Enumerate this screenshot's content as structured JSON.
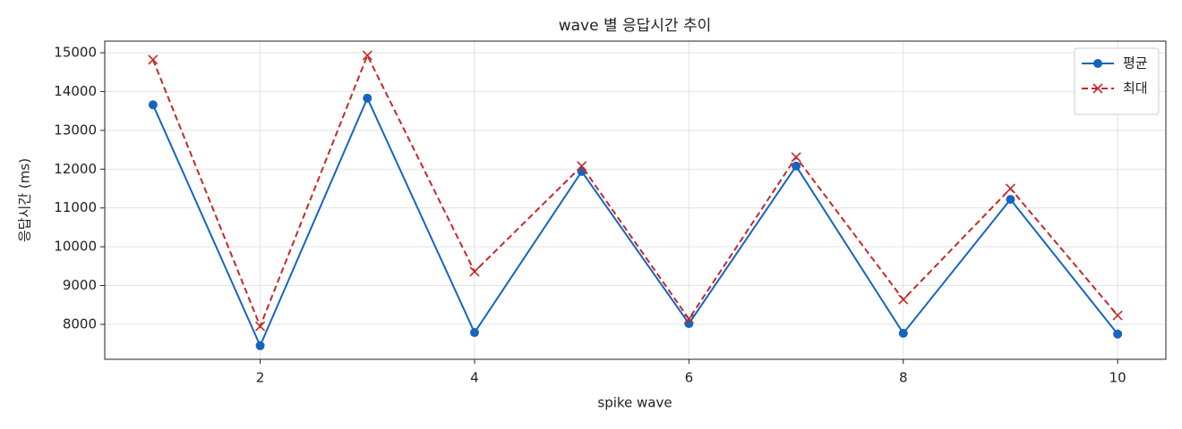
{
  "chart_data": {
    "type": "line",
    "title": "wave 별 응답시간 추이",
    "x_label": "spike wave",
    "y_label": "응답시간 (ms)",
    "x": [
      1,
      2,
      3,
      4,
      5,
      6,
      7,
      8,
      9,
      10
    ],
    "series": [
      {
        "name": "평균",
        "color": "#1565c0",
        "marker": "circle",
        "dash": "solid",
        "values": [
          13660,
          7450,
          13830,
          7790,
          11940,
          8020,
          12080,
          7770,
          11220,
          7750
        ]
      },
      {
        "name": "최대",
        "color": "#c62828",
        "marker": "x",
        "dash": "dashed",
        "values": [
          14820,
          7950,
          14930,
          9360,
          12080,
          8140,
          12310,
          8640,
          11500,
          8230
        ]
      }
    ],
    "xlim": [
      0.55,
      10.45
    ],
    "xticks": [
      2,
      4,
      6,
      8,
      10
    ],
    "ylim": [
      7100,
      15300
    ],
    "yticks": [
      8000,
      9000,
      10000,
      11000,
      12000,
      13000,
      14000,
      15000
    ],
    "grid": true,
    "legend": "upper right"
  }
}
